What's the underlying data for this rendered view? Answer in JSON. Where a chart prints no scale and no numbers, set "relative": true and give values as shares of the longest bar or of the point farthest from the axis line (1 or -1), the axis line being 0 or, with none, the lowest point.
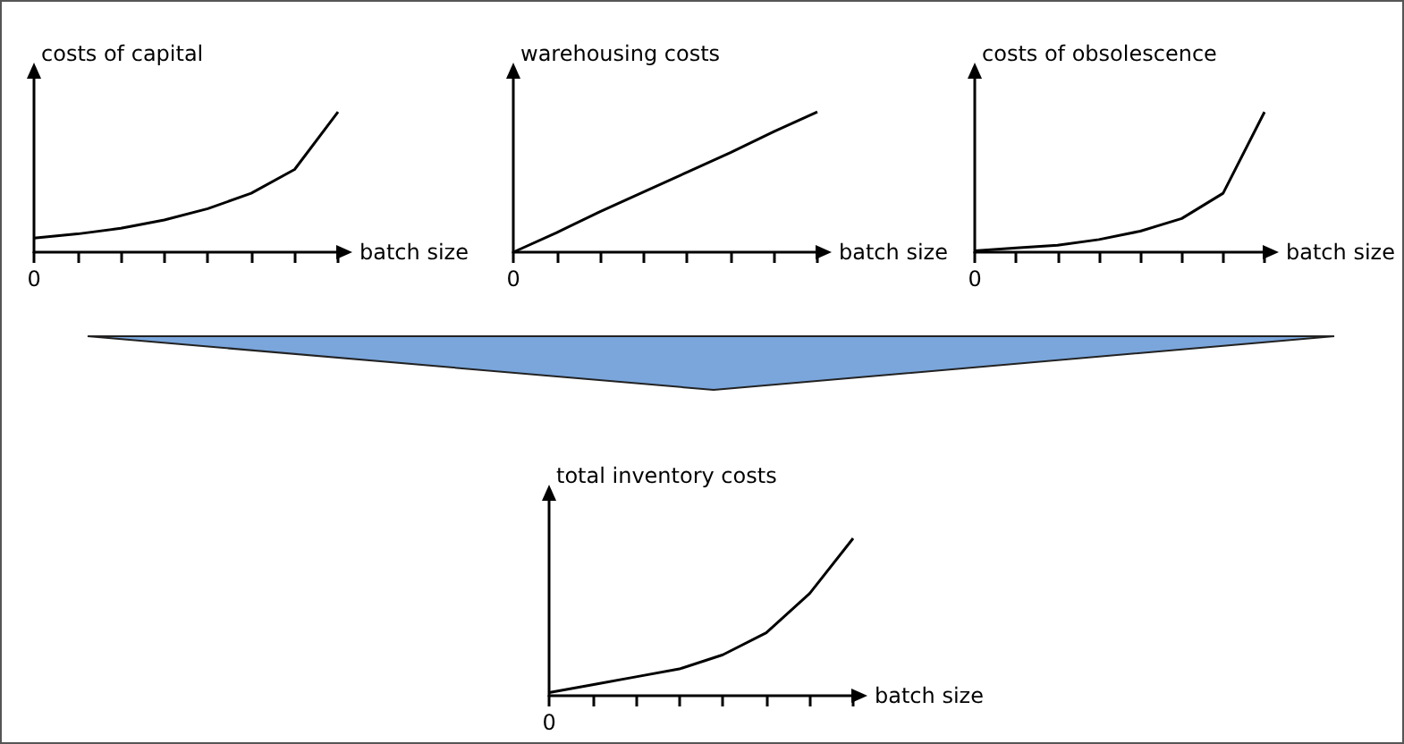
{
  "chart_data": [
    {
      "type": "line",
      "ylabel": "costs of capital",
      "xlabel": "batch size",
      "relative": true,
      "annotations": [
        "0"
      ],
      "categories": [
        null,
        null,
        null,
        null,
        null,
        null,
        null,
        null
      ],
      "series": [
        {
          "color": "#000000",
          "values": [
            0.1,
            0.13,
            0.17,
            0.23,
            0.31,
            0.42,
            0.59,
            1
          ]
        }
      ]
    },
    {
      "type": "line",
      "ylabel": "warehousing costs",
      "xlabel": "batch size",
      "relative": true,
      "annotations": [
        "0"
      ],
      "categories": [
        null,
        null,
        null,
        null,
        null,
        null,
        null,
        null
      ],
      "series": [
        {
          "color": "#000000",
          "values": [
            0,
            0.14,
            0.29,
            0.43,
            0.57,
            0.71,
            0.86,
            1
          ]
        }
      ]
    },
    {
      "type": "line",
      "ylabel": "costs of obsolescence",
      "xlabel": "batch size",
      "relative": true,
      "annotations": [
        "0"
      ],
      "categories": [
        null,
        null,
        null,
        null,
        null,
        null,
        null,
        null
      ],
      "series": [
        {
          "color": "#000000",
          "values": [
            0.01,
            0.03,
            0.05,
            0.09,
            0.15,
            0.24,
            0.42,
            1
          ]
        }
      ]
    },
    {
      "type": "line",
      "ylabel": "total inventory costs",
      "xlabel": "batch size",
      "relative": true,
      "annotations": [
        "0"
      ],
      "categories": [
        null,
        null,
        null,
        null,
        null,
        null,
        null,
        null
      ],
      "series": [
        {
          "color": "#000000",
          "values": [
            0.02,
            0.07,
            0.12,
            0.17,
            0.26,
            0.4,
            0.65,
            1
          ]
        }
      ]
    }
  ]
}
